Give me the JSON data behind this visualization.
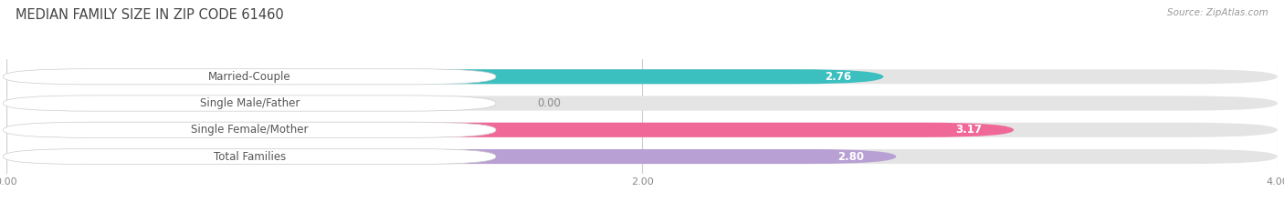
{
  "title": "MEDIAN FAMILY SIZE IN ZIP CODE 61460",
  "source": "Source: ZipAtlas.com",
  "categories": [
    "Married-Couple",
    "Single Male/Father",
    "Single Female/Mother",
    "Total Families"
  ],
  "values": [
    2.76,
    0.0,
    3.17,
    2.8
  ],
  "bar_colors": [
    "#3bbfbf",
    "#a8b8e8",
    "#f06898",
    "#b89fd4"
  ],
  "background_color": "#ffffff",
  "bar_bg_color": "#e4e4e4",
  "xlim": [
    0.0,
    4.0
  ],
  "xticks": [
    0.0,
    2.0,
    4.0
  ],
  "label_fontsize": 8.5,
  "value_fontsize": 8.5,
  "title_fontsize": 10.5
}
